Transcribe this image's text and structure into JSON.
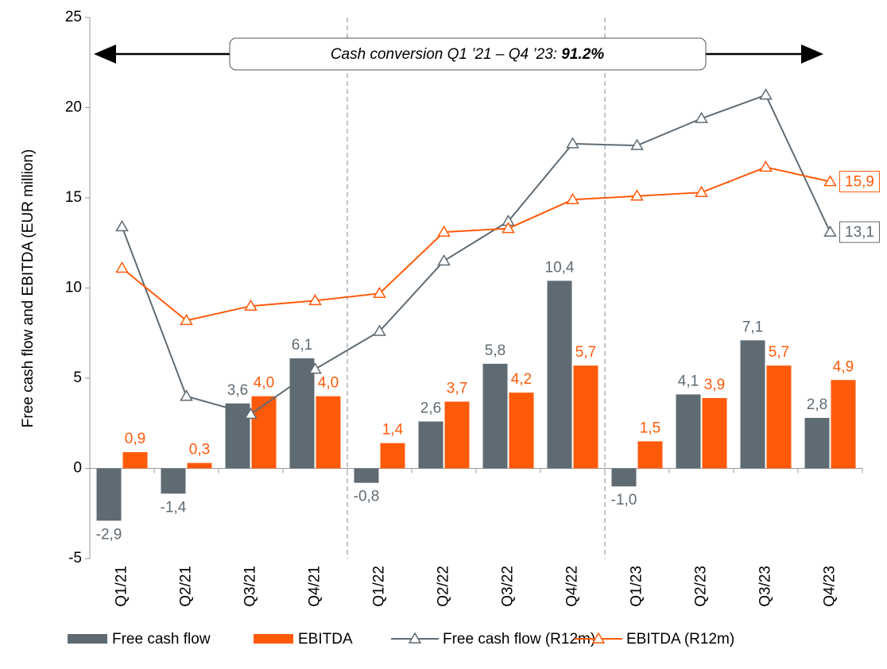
{
  "chart_data": {
    "type": "bar",
    "y_label": "Free cash flow and EBITDA (EUR million)",
    "categories": [
      "Q1/21",
      "Q2/21",
      "Q3/21",
      "Q4/21",
      "Q1/22",
      "Q2/22",
      "Q3/22",
      "Q4/22",
      "Q1/23",
      "Q2/23",
      "Q3/23",
      "Q4/23"
    ],
    "ylim": [
      -5,
      25
    ],
    "yticks": [
      -5,
      0,
      5,
      10,
      15,
      20,
      25
    ],
    "annotation": {
      "text": "Cash conversion Q1 ’21 – Q4 ’23:",
      "value": "91.2%"
    },
    "series": [
      {
        "name": "Free cash flow",
        "type": "bar",
        "color": "#5f6b73",
        "values": [
          -2.9,
          -1.4,
          3.6,
          6.1,
          -0.8,
          2.6,
          5.8,
          10.4,
          -1.0,
          4.1,
          7.1,
          2.8
        ],
        "value_labels": [
          "-2,9",
          "-1,4",
          "3,6",
          "6,1",
          "-0,8",
          "2,6",
          "5,8",
          "10,4",
          "-1,0",
          "4,1",
          "7,1",
          "2,8"
        ]
      },
      {
        "name": "EBITDA",
        "type": "bar",
        "color": "#ff5a0a",
        "values": [
          0.9,
          0.3,
          4.0,
          4.0,
          1.4,
          3.7,
          4.2,
          5.7,
          1.5,
          3.9,
          5.7,
          4.9
        ],
        "value_labels": [
          "0,9",
          "0,3",
          "4,0",
          "4,0",
          "1,4",
          "3,7",
          "4,2",
          "5,7",
          "1,5",
          "3,9",
          "5,7",
          "4,9"
        ]
      },
      {
        "name": "Free cash flow (R12m)",
        "type": "line",
        "color": "#5f6b73",
        "values": [
          13.4,
          4.0,
          3.0,
          5.5,
          7.6,
          11.5,
          13.7,
          18.0,
          17.9,
          19.4,
          20.7,
          13.1
        ],
        "value_labels": [
          null,
          null,
          null,
          null,
          null,
          null,
          null,
          null,
          null,
          null,
          null,
          "13,1"
        ]
      },
      {
        "name": "EBITDA (R12m)",
        "type": "line",
        "color": "#ff5a0a",
        "values": [
          11.1,
          8.2,
          9.0,
          9.3,
          9.7,
          13.1,
          13.3,
          14.9,
          15.1,
          15.3,
          16.7,
          15.9
        ],
        "value_labels": [
          null,
          null,
          null,
          null,
          null,
          null,
          null,
          null,
          null,
          null,
          null,
          "15,9"
        ]
      }
    ]
  }
}
